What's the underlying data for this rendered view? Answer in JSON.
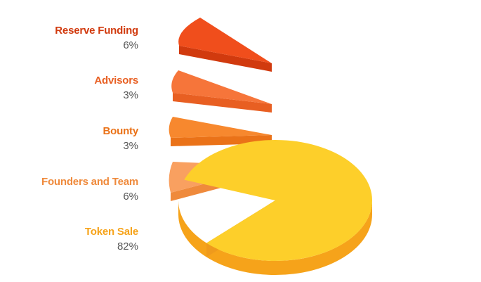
{
  "chart_data": {
    "type": "pie",
    "style": "3d-exploded",
    "legend_position": "left",
    "slices": [
      {
        "label": "Reserve Funding",
        "value": 6,
        "value_text": "6%",
        "color": "#f04e1c",
        "side_color": "#d13a0e"
      },
      {
        "label": "Advisors",
        "value": 3,
        "value_text": "3%",
        "color": "#f6753a",
        "side_color": "#e85f22"
      },
      {
        "label": "Bounty",
        "value": 3,
        "value_text": "3%",
        "color": "#f7882e",
        "side_color": "#ea7218"
      },
      {
        "label": "Founders and Team",
        "value": 6,
        "value_text": "6%",
        "color": "#f9a060",
        "side_color": "#ef8a3c"
      },
      {
        "label": "Token Sale",
        "value": 82,
        "value_text": "82%",
        "color": "#fdcf2a",
        "side_color": "#f6a31a"
      }
    ]
  }
}
